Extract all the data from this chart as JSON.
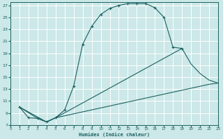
{
  "xlabel": "Humidex (Indice chaleur)",
  "bg_color": "#cce8e8",
  "grid_color": "#b8d8d8",
  "line_color": "#1a6060",
  "xlim": [
    0,
    23
  ],
  "ylim": [
    7,
    27.5
  ],
  "yticks": [
    7,
    9,
    11,
    13,
    15,
    17,
    19,
    21,
    23,
    25,
    27
  ],
  "xticks": [
    0,
    1,
    2,
    3,
    4,
    5,
    6,
    7,
    8,
    9,
    10,
    11,
    12,
    13,
    14,
    15,
    16,
    17,
    18,
    19,
    20,
    21,
    22,
    23
  ],
  "curve1_x": [
    1,
    2,
    3,
    4,
    5,
    6,
    7,
    8,
    9,
    10,
    11,
    12,
    13,
    14,
    15,
    16,
    17,
    18,
    19
  ],
  "curve1_y": [
    10,
    8.2,
    8.1,
    7.5,
    8.2,
    9.5,
    13.5,
    20.5,
    23.5,
    25.5,
    26.5,
    27.0,
    27.3,
    27.3,
    27.3,
    26.6,
    25.0,
    20.0,
    19.8
  ],
  "curve2_x": [
    1,
    3,
    4,
    5,
    22,
    23
  ],
  "curve2_y": [
    10,
    8.1,
    7.5,
    8.2,
    13.8,
    14.0
  ],
  "curve3_x": [
    1,
    4,
    5,
    19,
    20,
    21,
    22,
    23
  ],
  "curve3_y": [
    10,
    7.5,
    8.2,
    19.8,
    17.2,
    15.6,
    14.5,
    14.0
  ]
}
